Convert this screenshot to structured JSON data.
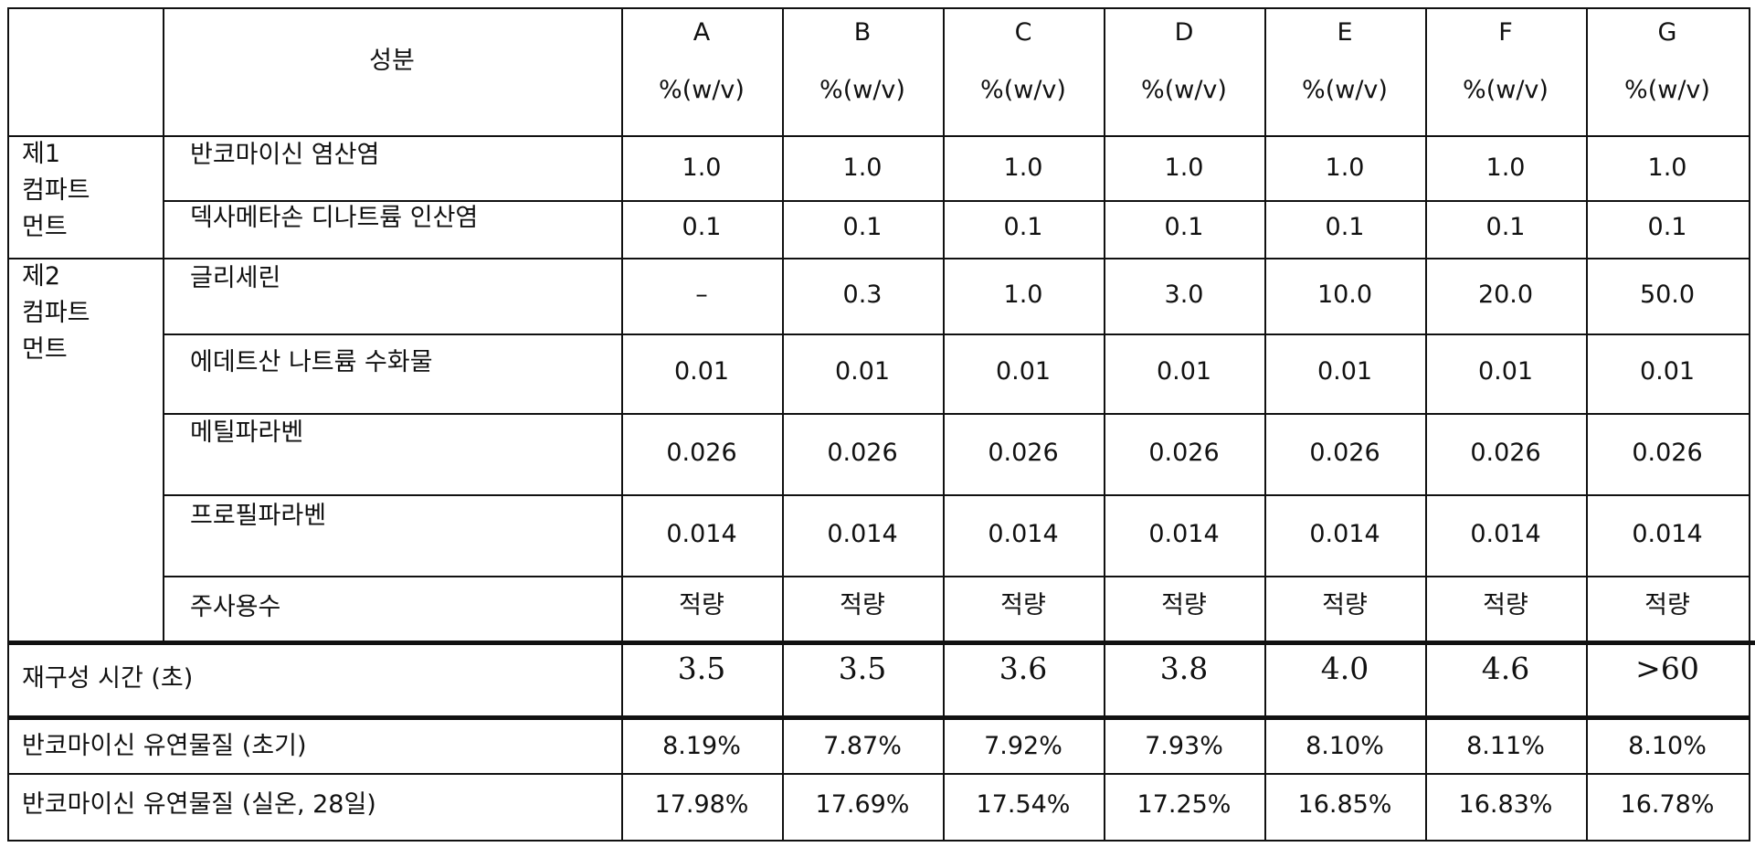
{
  "header": {
    "component_label": "성분",
    "formulations": [
      {
        "letter": "A",
        "unit": "%(w/v)"
      },
      {
        "letter": "B",
        "unit": "%(w/v)"
      },
      {
        "letter": "C",
        "unit": "%(w/v)"
      },
      {
        "letter": "D",
        "unit": "%(w/v)"
      },
      {
        "letter": "E",
        "unit": "%(w/v)"
      },
      {
        "letter": "F",
        "unit": "%(w/v)"
      },
      {
        "letter": "G",
        "unit": "%(w/v)"
      }
    ]
  },
  "groups": [
    {
      "label_lines": [
        "제1",
        "컴파트",
        "먼트"
      ]
    },
    {
      "label_lines": [
        "제2",
        "컴파트",
        "먼트"
      ]
    }
  ],
  "ingredients": [
    {
      "name": "반코마이신 염산염",
      "values": [
        "1.0",
        "1.0",
        "1.0",
        "1.0",
        "1.0",
        "1.0",
        "1.0"
      ]
    },
    {
      "name": "덱사메타손 디나트륨 인산염",
      "values": [
        "0.1",
        "0.1",
        "0.1",
        "0.1",
        "0.1",
        "0.1",
        "0.1"
      ]
    },
    {
      "name": "글리세린",
      "values": [
        "–",
        "0.3",
        "1.0",
        "3.0",
        "10.0",
        "20.0",
        "50.0"
      ]
    },
    {
      "name": "에데트산 나트륨 수화물",
      "values": [
        "0.01",
        "0.01",
        "0.01",
        "0.01",
        "0.01",
        "0.01",
        "0.01"
      ]
    },
    {
      "name": "메틸파라벤",
      "values": [
        "0.026",
        "0.026",
        "0.026",
        "0.026",
        "0.026",
        "0.026",
        "0.026"
      ]
    },
    {
      "name": "프로필파라벤",
      "values": [
        "0.014",
        "0.014",
        "0.014",
        "0.014",
        "0.014",
        "0.014",
        "0.014"
      ]
    },
    {
      "name": "주사용수",
      "values": [
        "적량",
        "적량",
        "적량",
        "적량",
        "적량",
        "적량",
        "적량"
      ]
    }
  ],
  "results": [
    {
      "label": "재구성 시간 (초)",
      "values": [
        "3.5",
        "3.5",
        "3.6",
        "3.8",
        "4.0",
        "4.6",
        ">60"
      ]
    },
    {
      "label": "반코마이신 유연물질 (초기)",
      "values": [
        "8.19%",
        "7.87%",
        "7.92%",
        "7.93%",
        "8.10%",
        "8.11%",
        "8.10%"
      ]
    },
    {
      "label": "반코마이신 유연물질 (실온, 28일)",
      "values": [
        "17.98%",
        "17.69%",
        "17.54%",
        "17.25%",
        "16.85%",
        "16.83%",
        "16.78%"
      ]
    }
  ],
  "colors": {
    "line": "#111111",
    "text": "#111111",
    "background": "#ffffff"
  }
}
